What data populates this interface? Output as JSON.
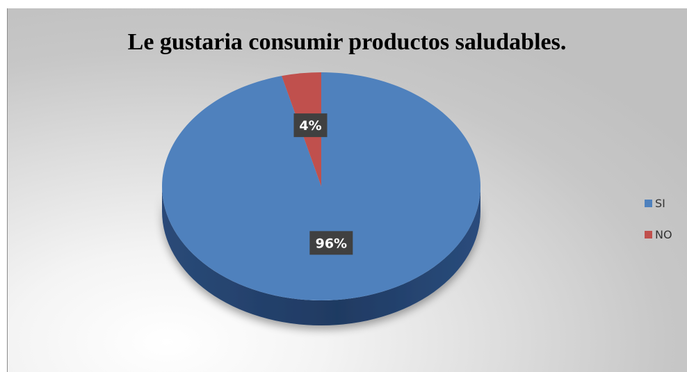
{
  "chart_data": {
    "type": "pie",
    "title": "Le gustaria consumir productos saludables.",
    "categories": [
      "SI",
      "NO"
    ],
    "values": [
      96,
      4
    ],
    "data_labels": [
      "96%",
      "4%"
    ],
    "colors": [
      "#4f81bd",
      "#c0504d"
    ],
    "style": "3d",
    "legend_position": "right"
  }
}
